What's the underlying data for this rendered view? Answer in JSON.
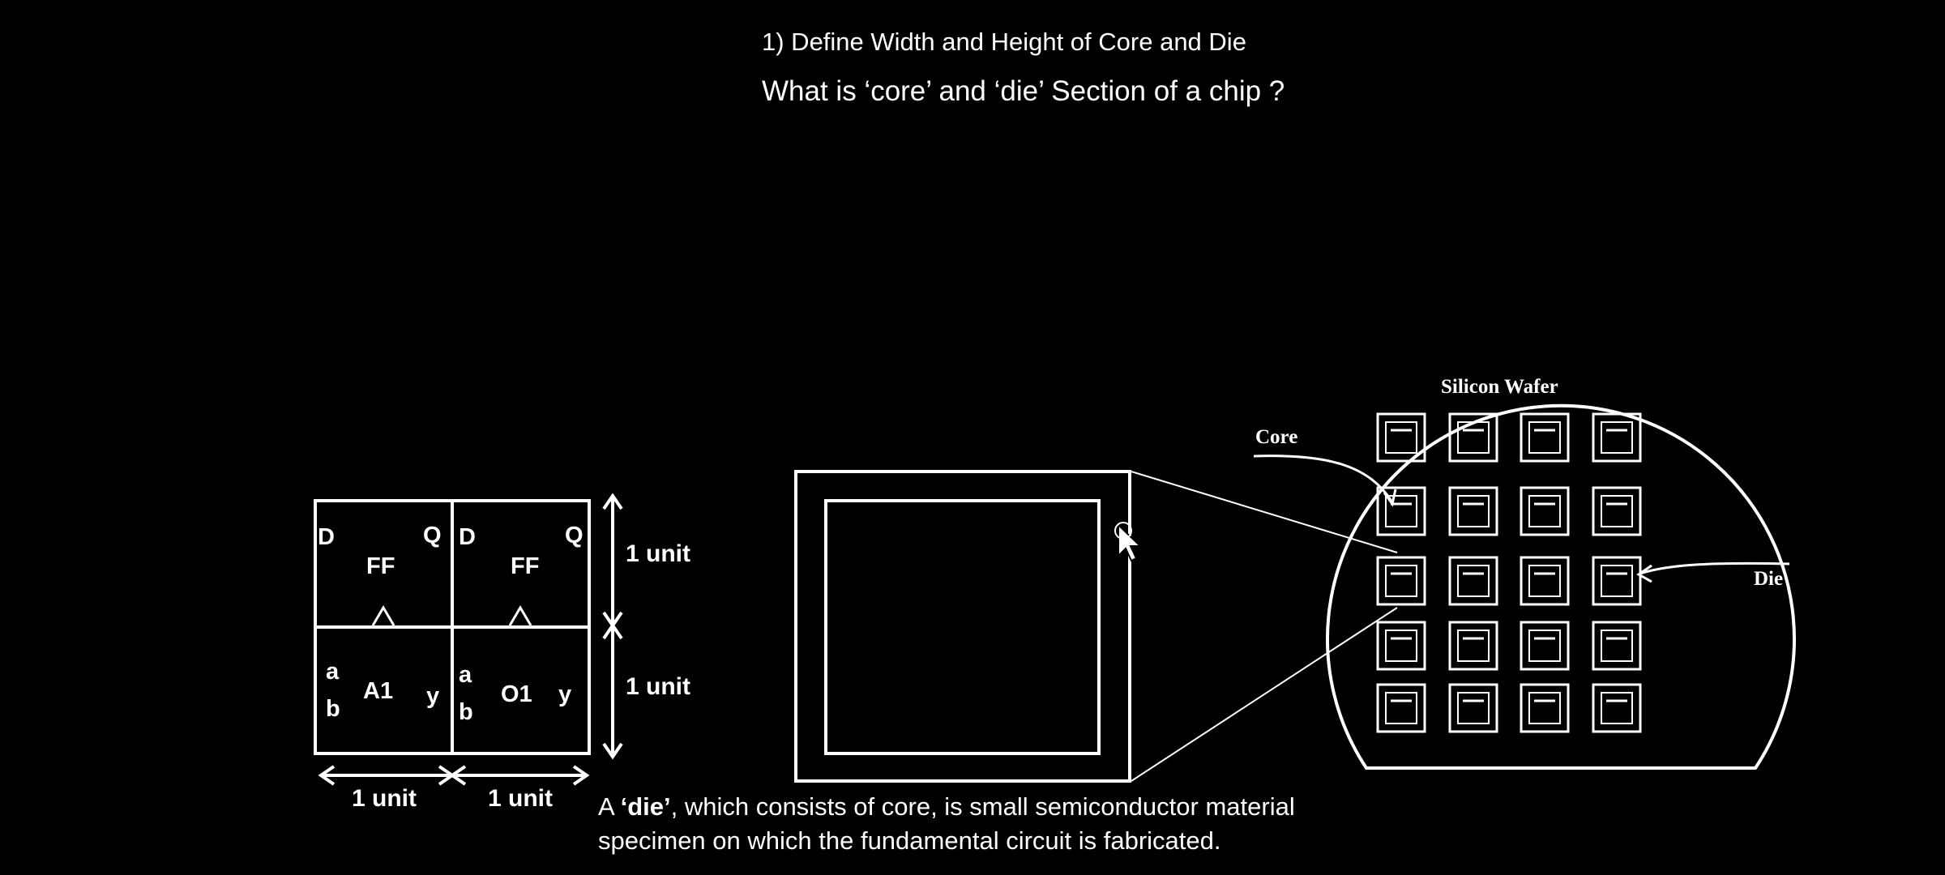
{
  "slide": {
    "heading": "1) Define Width and Height of Core and Die",
    "question": "What is ‘core’ and ‘die’ Section of a chip ?"
  },
  "cells": {
    "ff1": {
      "d": "D",
      "q": "Q",
      "name": "FF"
    },
    "ff2": {
      "d": "D",
      "q": "Q",
      "name": "FF"
    },
    "gate1": {
      "a": "a",
      "b": "b",
      "name": "A1",
      "y": "y"
    },
    "gate2": {
      "a": "a",
      "b": "b",
      "name": "O1",
      "y": "y"
    },
    "height_top": "1 unit",
    "height_bottom": "1 unit",
    "width_left": "1 unit",
    "width_right": "1 unit"
  },
  "wafer": {
    "title": "Silicon Wafer",
    "core_label": "Core",
    "die_label": "Die"
  },
  "caption": {
    "prefix": "A ",
    "bold": "‘die’",
    "rest": ", which consists of core, is small semiconductor material",
    "line2": "specimen on which the fundamental circuit is fabricated."
  }
}
